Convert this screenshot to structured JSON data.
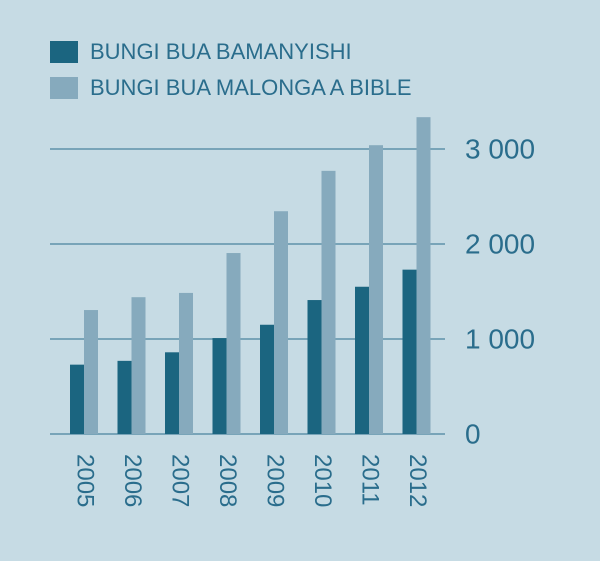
{
  "chart_data": {
    "type": "bar",
    "categories": [
      "2005",
      "2006",
      "2007",
      "2008",
      "2009",
      "2010",
      "2011",
      "2012"
    ],
    "series": [
      {
        "name": "BUNGI BUA BAMANYISHI",
        "color": "#1b6580",
        "values": [
          730,
          770,
          860,
          1010,
          1150,
          1410,
          1550,
          1730
        ]
      },
      {
        "name": "BUNGI BUA MALONGA A BIBLE",
        "color": "#86aabd",
        "values": [
          1305,
          1440,
          1485,
          1905,
          2345,
          2770,
          3040,
          3335
        ]
      }
    ],
    "ylim": [
      0,
      3400
    ],
    "yticks": [
      0,
      {
        "value": 1000,
        "label": "1 000"
      },
      {
        "value": 2000,
        "label": "2 000"
      },
      {
        "value": 3000,
        "label": "3 000"
      }
    ],
    "grid": true
  }
}
